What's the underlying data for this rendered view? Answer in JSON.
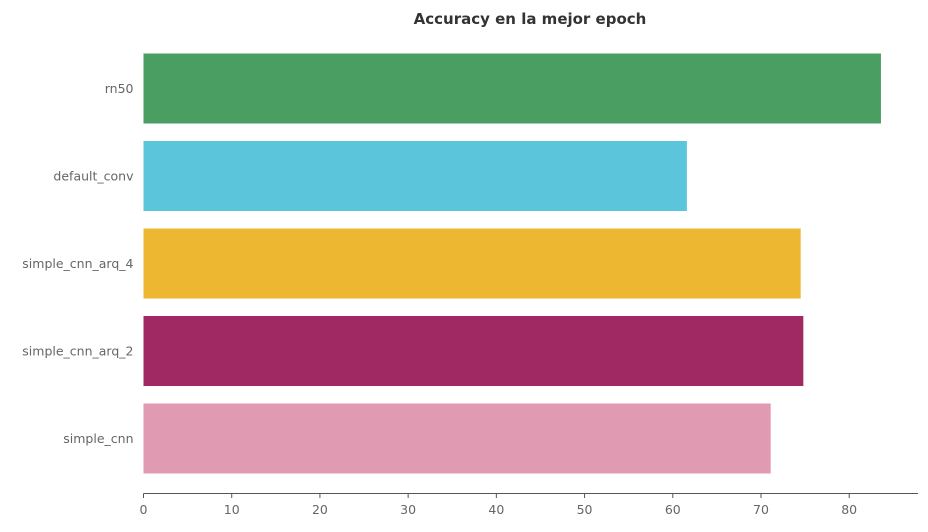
{
  "chart_data": {
    "type": "bar",
    "orientation": "horizontal",
    "title": "Accuracy en la mejor epoch",
    "xlabel": "",
    "ylabel": "",
    "categories": [
      "rn50",
      "default_conv",
      "simple_cnn_arq_4",
      "simple_cnn_arq_2",
      "simple_cnn"
    ],
    "values": [
      83.6,
      61.6,
      74.5,
      74.8,
      71.1
    ],
    "colors": [
      "#4a9e62",
      "#5bc5db",
      "#edb731",
      "#a02963",
      "#e09ab1"
    ],
    "xlim": [
      0,
      87.8
    ],
    "xticks": [
      0,
      10,
      20,
      30,
      40,
      50,
      60,
      70,
      80
    ],
    "grid": false,
    "legend": "none"
  }
}
